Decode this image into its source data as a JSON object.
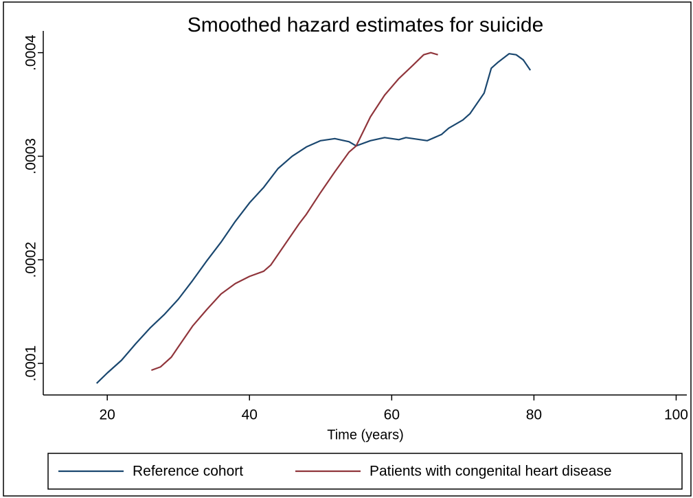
{
  "chart_data": {
    "type": "line",
    "title": "Smoothed hazard estimates for suicide",
    "x_label": "Time (years)",
    "xlim": [
      11,
      101.5
    ],
    "xticks": [
      20,
      40,
      60,
      80,
      100
    ],
    "ylim": [
      6.95e-05,
      0.000421
    ],
    "yticks": [
      {
        "value": 0.0001,
        "label": ".0001"
      },
      {
        "value": 0.0002,
        "label": ".0002"
      },
      {
        "value": 0.0003,
        "label": ".0003"
      },
      {
        "value": 0.0004,
        "label": ".0004"
      }
    ],
    "grid": false,
    "legend": "bottom",
    "series": [
      {
        "name": "Reference cohort",
        "color": "#1a476f",
        "x": [
          18.5,
          20,
          22,
          24,
          26,
          28,
          30,
          32,
          34,
          36,
          38,
          40,
          42,
          44,
          46,
          48,
          50,
          52,
          54,
          55,
          57,
          59,
          61,
          62,
          65,
          67,
          68,
          70,
          71,
          73,
          74,
          75,
          76.5,
          77.5,
          78.5,
          79.5
        ],
        "values": [
          8.07e-05,
          9.07e-05,
          0.000103,
          0.000119,
          0.000134,
          0.000147,
          0.000162,
          0.00018,
          0.000199,
          0.000217,
          0.000237,
          0.000255,
          0.00027,
          0.000288,
          0.0003,
          0.000309,
          0.000315,
          0.000317,
          0.000314,
          0.00031,
          0.000315,
          0.000318,
          0.000316,
          0.000318,
          0.000315,
          0.000321,
          0.000327,
          0.000335,
          0.000341,
          0.000361,
          0.000385,
          0.000391,
          0.000399,
          0.000398,
          0.000393,
          0.000383
        ]
      },
      {
        "name": "Patients with congenital heart disease",
        "color": "#90353b",
        "x": [
          26.2,
          27.5,
          29,
          30,
          32,
          34,
          36,
          38,
          40,
          42,
          43,
          45,
          47,
          48,
          50,
          52,
          54,
          55,
          57,
          59,
          61,
          63,
          64.5,
          65.5,
          66.5
        ],
        "values": [
          9.34e-05,
          9.66e-05,
          0.000106,
          0.000116,
          0.000136,
          0.000152,
          0.000167,
          0.000177,
          0.000184,
          0.000189,
          0.000195,
          0.000215,
          0.000235,
          0.000244,
          0.000265,
          0.000285,
          0.000304,
          0.00031,
          0.000338,
          0.000359,
          0.000375,
          0.000388,
          0.000398,
          0.0004,
          0.000398
        ]
      }
    ]
  }
}
